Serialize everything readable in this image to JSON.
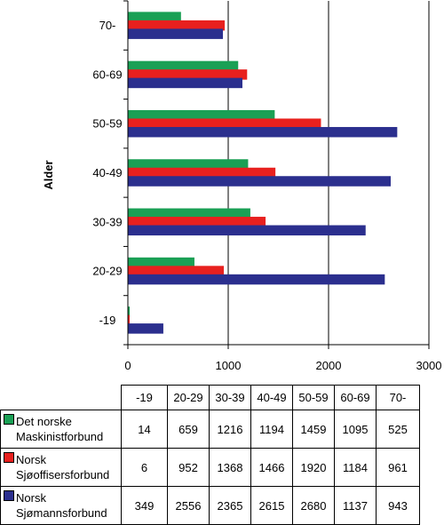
{
  "chart_data": {
    "type": "bar",
    "orientation": "horizontal",
    "ylabel": "Alder",
    "xlabel": "",
    "categories": [
      "-19",
      "20-29",
      "30-39",
      "40-49",
      "50-59",
      "60-69",
      "70-"
    ],
    "xlim": [
      0,
      3000
    ],
    "x_ticks": [
      0,
      1000,
      2000,
      3000
    ],
    "grid": "vertical major lines",
    "series": [
      {
        "name": "Det norske Maskinistforbund",
        "name_lines": [
          "Det norske",
          "Maskinistforbund"
        ],
        "color": "#1aa055",
        "values": [
          14,
          659,
          1216,
          1194,
          1459,
          1095,
          525
        ]
      },
      {
        "name": "Norsk Sjøoffisersforbund",
        "name_lines": [
          "Norsk",
          "Sjøoffisersforbund"
        ],
        "color": "#e8201e",
        "values": [
          6,
          952,
          1368,
          1466,
          1920,
          1184,
          961
        ]
      },
      {
        "name": "Norsk Sjømannsforbund",
        "name_lines": [
          "Norsk",
          "Sjømannsforbund"
        ],
        "color": "#2b2f8e",
        "values": [
          349,
          2556,
          2365,
          2615,
          2680,
          1137,
          943
        ]
      }
    ],
    "legend": "data table below chart"
  }
}
